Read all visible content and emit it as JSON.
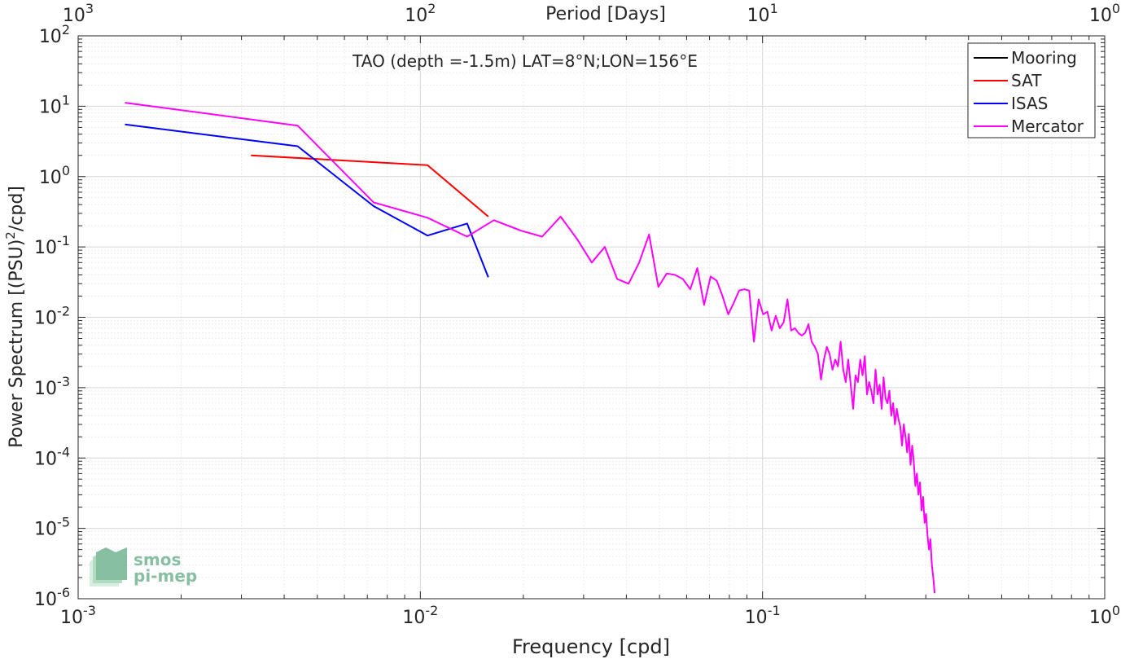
{
  "chart_data": {
    "type": "line",
    "title": "TAO (depth =-1.5m) LAT=8°N;LON=156°E",
    "xlabel": "Frequency [cpd]",
    "ylabel_main": "Power Spectrum [(PSU)",
    "ylabel_sup": "2",
    "ylabel_tail": "/cpd]",
    "x2label": "Period [Days]",
    "xscale": "log",
    "yscale": "log",
    "xlim": [
      0.001,
      1
    ],
    "ylim": [
      1e-06,
      100
    ],
    "grid": true,
    "legend_position": "top-right",
    "x_ticks": [
      {
        "value": 0.001,
        "base": "10",
        "exp": "-3"
      },
      {
        "value": 0.01,
        "base": "10",
        "exp": "-2"
      },
      {
        "value": 0.1,
        "base": "10",
        "exp": "-1"
      },
      {
        "value": 1,
        "base": "10",
        "exp": "0"
      }
    ],
    "x2_ticks": [
      {
        "value": 0.001,
        "base": "10",
        "exp": "3"
      },
      {
        "value": 0.01,
        "base": "10",
        "exp": "2"
      },
      {
        "value": 0.1,
        "base": "10",
        "exp": "1"
      },
      {
        "value": 1,
        "base": "10",
        "exp": "0"
      }
    ],
    "y_ticks": [
      {
        "value": 100,
        "base": "10",
        "exp": "2"
      },
      {
        "value": 10,
        "base": "10",
        "exp": "1"
      },
      {
        "value": 1,
        "base": "10",
        "exp": "0"
      },
      {
        "value": 0.1,
        "base": "10",
        "exp": "-1"
      },
      {
        "value": 0.01,
        "base": "10",
        "exp": "-2"
      },
      {
        "value": 0.001,
        "base": "10",
        "exp": "-3"
      },
      {
        "value": 0.0001,
        "base": "10",
        "exp": "-4"
      },
      {
        "value": 1e-05,
        "base": "10",
        "exp": "-5"
      },
      {
        "value": 1e-06,
        "base": "10",
        "exp": "-6"
      }
    ],
    "series": [
      {
        "name": "Mooring",
        "color": "#000000",
        "points": []
      },
      {
        "name": "SAT",
        "color": "#ff0000",
        "points": [
          [
            0.0032,
            2.0
          ],
          [
            0.0105,
            1.45
          ],
          [
            0.0158,
            0.27
          ]
        ]
      },
      {
        "name": "ISAS",
        "color": "#0000ff",
        "points": [
          [
            0.00137,
            5.5
          ],
          [
            0.00438,
            2.7
          ],
          [
            0.0073,
            0.38
          ],
          [
            0.0105,
            0.145
          ],
          [
            0.0137,
            0.215
          ],
          [
            0.0158,
            0.037
          ]
        ]
      },
      {
        "name": "Mercator",
        "color": "#ff00ff",
        "points": [
          [
            0.00137,
            11.2
          ],
          [
            0.00438,
            5.3
          ],
          [
            0.0073,
            0.43
          ],
          [
            0.0105,
            0.26
          ],
          [
            0.0137,
            0.14
          ],
          [
            0.0164,
            0.24
          ],
          [
            0.0197,
            0.17
          ],
          [
            0.0227,
            0.14
          ],
          [
            0.0257,
            0.27
          ],
          [
            0.0287,
            0.13
          ],
          [
            0.0317,
            0.06
          ],
          [
            0.0346,
            0.1
          ],
          [
            0.0376,
            0.035
          ],
          [
            0.0406,
            0.03
          ],
          [
            0.0436,
            0.06
          ],
          [
            0.0466,
            0.15
          ],
          [
            0.0496,
            0.027
          ],
          [
            0.0525,
            0.042
          ],
          [
            0.0555,
            0.04
          ],
          [
            0.0585,
            0.035
          ],
          [
            0.0615,
            0.025
          ],
          [
            0.0645,
            0.05
          ],
          [
            0.0675,
            0.015
          ],
          [
            0.0705,
            0.038
          ],
          [
            0.0735,
            0.033
          ],
          [
            0.0764,
            0.02
          ],
          [
            0.0794,
            0.011
          ],
          [
            0.0824,
            0.016
          ],
          [
            0.0854,
            0.024
          ],
          [
            0.0884,
            0.025
          ],
          [
            0.0914,
            0.024
          ],
          [
            0.0944,
            0.0045
          ],
          [
            0.0974,
            0.018
          ],
          [
            0.1004,
            0.011
          ],
          [
            0.1033,
            0.012
          ],
          [
            0.1063,
            0.0065
          ],
          [
            0.1093,
            0.0105
          ],
          [
            0.1123,
            0.007
          ],
          [
            0.1153,
            0.0085
          ],
          [
            0.1183,
            0.018
          ],
          [
            0.1213,
            0.0065
          ],
          [
            0.1243,
            0.007
          ],
          [
            0.1273,
            0.006
          ],
          [
            0.1302,
            0.0055
          ],
          [
            0.1332,
            0.006
          ],
          [
            0.1362,
            0.008
          ],
          [
            0.1392,
            0.0045
          ],
          [
            0.1422,
            0.0038
          ],
          [
            0.1452,
            0.003
          ],
          [
            0.1482,
            0.0013
          ],
          [
            0.1512,
            0.0025
          ],
          [
            0.1541,
            0.0038
          ],
          [
            0.1571,
            0.003
          ],
          [
            0.1601,
            0.0018
          ],
          [
            0.1631,
            0.0025
          ],
          [
            0.1661,
            0.002
          ],
          [
            0.1691,
            0.0045
          ],
          [
            0.1721,
            0.0018
          ],
          [
            0.1751,
            0.0012
          ],
          [
            0.178,
            0.0025
          ],
          [
            0.181,
            0.0011
          ],
          [
            0.184,
            0.0005
          ],
          [
            0.187,
            0.0015
          ],
          [
            0.19,
            0.0012
          ],
          [
            0.193,
            0.0025
          ],
          [
            0.196,
            0.0015
          ],
          [
            0.199,
            0.0028
          ],
          [
            0.202,
            0.0008
          ],
          [
            0.2049,
            0.0012
          ],
          [
            0.2079,
            0.0009
          ],
          [
            0.2109,
            0.0006
          ],
          [
            0.2139,
            0.0018
          ],
          [
            0.2169,
            0.0008
          ],
          [
            0.2199,
            0.0011
          ],
          [
            0.2229,
            0.0005
          ],
          [
            0.2259,
            0.0014
          ],
          [
            0.2288,
            0.0007
          ],
          [
            0.2318,
            0.0006
          ],
          [
            0.2348,
            0.0009
          ],
          [
            0.2378,
            0.0004
          ],
          [
            0.2408,
            0.0006
          ],
          [
            0.2438,
            0.0003
          ],
          [
            0.2468,
            0.0005
          ],
          [
            0.2498,
            0.00035
          ],
          [
            0.2527,
            0.00028
          ],
          [
            0.2557,
            0.00015
          ],
          [
            0.2587,
            0.0003
          ],
          [
            0.2617,
            0.0002
          ],
          [
            0.2647,
            0.00012
          ],
          [
            0.2677,
            0.00022
          ],
          [
            0.2707,
            8e-05
          ],
          [
            0.2737,
            0.00015
          ],
          [
            0.2766,
            9e-05
          ],
          [
            0.2796,
            4e-05
          ],
          [
            0.2826,
            6e-05
          ],
          [
            0.2856,
            3e-05
          ],
          [
            0.2886,
            4.5e-05
          ],
          [
            0.2916,
            1.8e-05
          ],
          [
            0.2946,
            2.8e-05
          ],
          [
            0.2976,
            1.2e-05
          ],
          [
            0.3005,
            1.6e-05
          ],
          [
            0.3035,
            8e-06
          ],
          [
            0.3065,
            5e-06
          ],
          [
            0.3095,
            7e-06
          ],
          [
            0.3125,
            3e-06
          ],
          [
            0.3155,
            2e-06
          ],
          [
            0.3185,
            1.2e-06
          ]
        ]
      }
    ]
  },
  "watermark": {
    "line1": "smos",
    "line2": "pi-mep",
    "color": "#6ab08c"
  }
}
